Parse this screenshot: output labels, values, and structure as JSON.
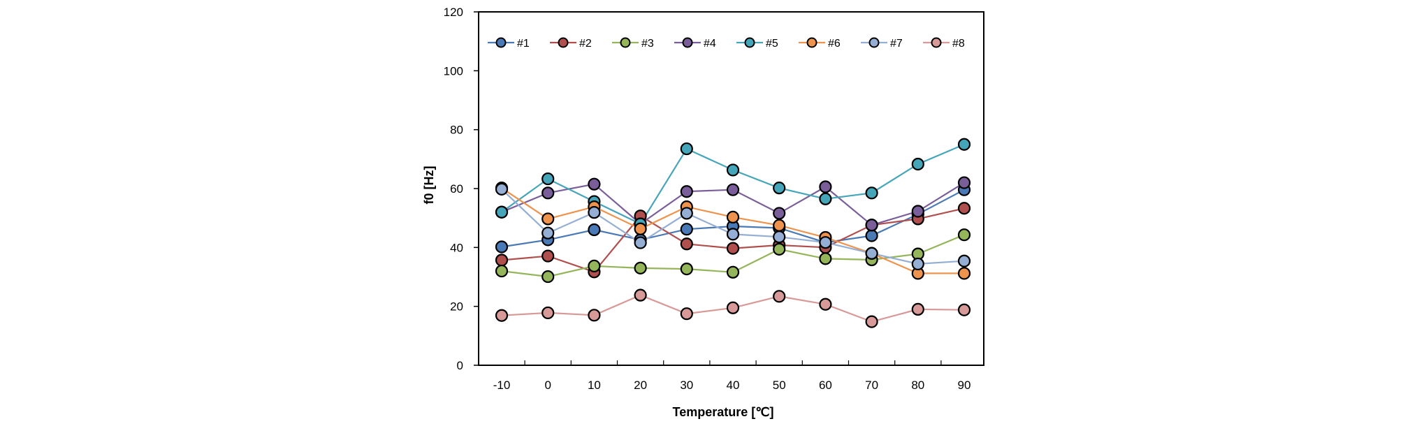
{
  "chart_data": {
    "type": "line",
    "title": "",
    "xlabel": "Temperature [℃]",
    "ylabel": "f0 [Hz]",
    "x": [
      -10,
      0,
      10,
      20,
      30,
      40,
      50,
      60,
      70,
      80,
      90
    ],
    "x_tick_labels": [
      "-10",
      "0",
      "10",
      "20",
      "30",
      "40",
      "50",
      "60",
      "70",
      "80",
      "90"
    ],
    "ylim": [
      0,
      120
    ],
    "y_ticks": [
      0,
      20,
      40,
      60,
      80,
      100,
      120
    ],
    "y_tick_labels": [
      "0",
      "20",
      "40",
      "60",
      "80",
      "100",
      "120"
    ],
    "grid": false,
    "legend_position": "top",
    "series": [
      {
        "name": "#1",
        "color": "#4a7ab5",
        "values": [
          40.2,
          42.6,
          46.0,
          42.6,
          46.2,
          47.2,
          46.6,
          41.7,
          44.0,
          51.3,
          59.6
        ]
      },
      {
        "name": "#2",
        "color": "#b0504e",
        "values": [
          35.7,
          37.1,
          31.7,
          50.7,
          41.2,
          39.7,
          40.8,
          40.0,
          47.6,
          49.7,
          53.3
        ]
      },
      {
        "name": "#3",
        "color": "#94b55a",
        "values": [
          32.0,
          30.1,
          33.7,
          33.0,
          32.7,
          31.6,
          39.4,
          36.2,
          35.8,
          37.8,
          44.3
        ]
      },
      {
        "name": "#4",
        "color": "#7a5e9a",
        "values": [
          52.0,
          58.5,
          61.5,
          48.0,
          59.0,
          59.6,
          51.6,
          60.6,
          47.6,
          52.3,
          62.0
        ]
      },
      {
        "name": "#5",
        "color": "#45a5b9",
        "values": [
          52.0,
          63.3,
          55.6,
          48.0,
          73.5,
          66.3,
          60.2,
          56.5,
          58.5,
          68.3,
          75.0
        ]
      },
      {
        "name": "#6",
        "color": "#ee934d",
        "values": [
          60.2,
          49.7,
          53.8,
          46.3,
          53.8,
          50.3,
          47.5,
          43.4,
          38.0,
          31.2,
          31.2
        ]
      },
      {
        "name": "#7",
        "color": "#94aed4",
        "values": [
          59.8,
          44.9,
          51.9,
          41.6,
          51.6,
          44.5,
          43.6,
          41.7,
          38.0,
          34.4,
          35.4
        ]
      },
      {
        "name": "#8",
        "color": "#d79a98",
        "values": [
          16.9,
          17.8,
          17.0,
          23.8,
          17.5,
          19.5,
          23.4,
          20.7,
          14.8,
          19.0,
          18.8
        ]
      }
    ]
  }
}
